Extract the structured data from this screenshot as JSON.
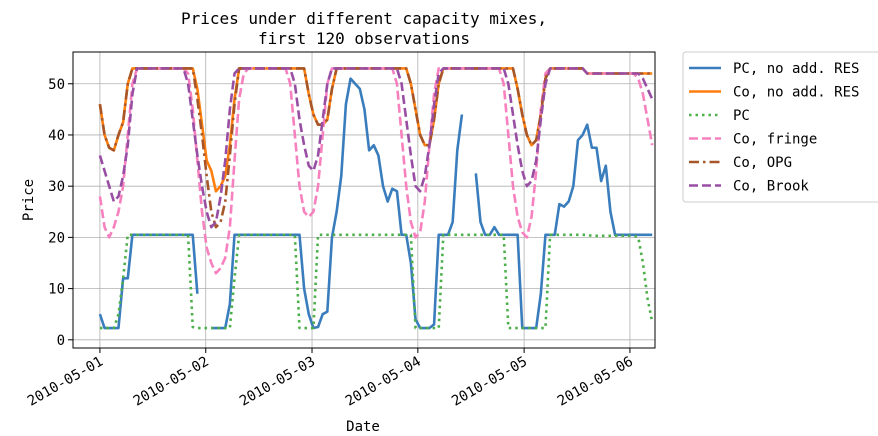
{
  "chart_data": {
    "type": "line",
    "title": [
      "Prices under different capacity mixes,",
      "first 120 observations"
    ],
    "x_label": "Date",
    "y_label": "Price",
    "x": [
      0,
      1,
      2,
      3,
      4,
      5,
      6,
      7,
      8,
      9,
      10,
      11,
      12,
      13,
      14,
      15,
      16,
      17,
      18,
      19,
      20,
      21,
      22,
      23,
      24,
      25,
      26,
      27,
      28,
      29,
      30,
      31,
      32,
      33,
      34,
      35,
      36,
      37,
      38,
      39,
      40,
      41,
      42,
      43,
      44,
      45,
      46,
      47,
      48,
      49,
      50,
      51,
      52,
      53,
      54,
      55,
      56,
      57,
      58,
      59,
      60,
      61,
      62,
      63,
      64,
      65,
      66,
      67,
      68,
      69,
      70,
      71,
      72,
      73,
      74,
      75,
      76,
      77,
      78,
      79,
      80,
      81,
      82,
      83,
      84,
      85,
      86,
      87,
      88,
      89,
      90,
      91,
      92,
      93,
      94,
      95,
      96,
      97,
      98,
      99,
      100,
      101,
      102,
      103,
      104,
      105,
      106,
      107,
      108,
      109,
      110,
      111,
      112,
      113,
      114,
      115,
      116,
      117,
      118,
      119
    ],
    "series": [
      {
        "name": "PC, no add. RES",
        "color": "#3a7dbd",
        "style": "solid",
        "values": [
          5,
          2.3,
          2.3,
          2.3,
          2.3,
          12,
          12,
          20.5,
          20.5,
          20.5,
          20.5,
          20.5,
          20.5,
          20.5,
          20.5,
          20.5,
          20.5,
          20.5,
          20.5,
          20.5,
          20.5,
          9,
          null,
          null,
          2.3,
          2.3,
          2.3,
          2.3,
          7,
          20.5,
          20.5,
          20.5,
          20.5,
          20.5,
          20.5,
          20.5,
          20.5,
          20.5,
          20.5,
          20.5,
          20.5,
          20.5,
          20.5,
          20.5,
          10,
          5,
          2.3,
          2.5,
          5,
          5.5,
          20,
          25,
          32,
          46,
          51,
          50,
          49,
          45,
          37,
          38,
          36,
          30,
          27,
          29.5,
          29,
          20.5,
          20.5,
          15,
          4,
          2.3,
          2.3,
          2.3,
          3,
          20.5,
          20.5,
          20.5,
          23,
          37,
          44,
          null,
          null,
          32.5,
          23,
          20.5,
          20.5,
          22,
          20.5,
          20.5,
          20.5,
          20.5,
          20.5,
          2.3,
          2.3,
          2.3,
          2.3,
          9,
          20.5,
          20.5,
          20.5,
          26.5,
          26,
          27,
          30,
          39,
          40,
          42,
          37.5,
          37.5,
          31,
          34,
          25,
          20.5,
          20.5,
          20.5,
          20.5,
          20.5,
          20.5,
          20.5,
          20.5,
          20.5
        ]
      },
      {
        "name": "Co, no add. RES",
        "color": "#ff7f0e",
        "style": "solid",
        "values": [
          46,
          40,
          37.5,
          37,
          40,
          42.5,
          50,
          53,
          53,
          53,
          53,
          53,
          53,
          53,
          53,
          53,
          53,
          53,
          53,
          53,
          53,
          49,
          42,
          35,
          33,
          29,
          30,
          32,
          38,
          47,
          53,
          53,
          53,
          53,
          53,
          53,
          53,
          53,
          53,
          53,
          53,
          53,
          53,
          53,
          53,
          48,
          44,
          42,
          42,
          43,
          49,
          53,
          53,
          53,
          53,
          53,
          53,
          53,
          53,
          53,
          53,
          53,
          53,
          53,
          53,
          53,
          53,
          50,
          45,
          40,
          38,
          38,
          43,
          50,
          53,
          53,
          53,
          53,
          53,
          53,
          53,
          53,
          53,
          53,
          53,
          53,
          53,
          53,
          53,
          53,
          49,
          44,
          40,
          38,
          39,
          44,
          51,
          53,
          53,
          53,
          53,
          53,
          53,
          53,
          53,
          52,
          52,
          52,
          52,
          52,
          52,
          52,
          52,
          52,
          52,
          52,
          52,
          52,
          52,
          52
        ]
      },
      {
        "name": "PC",
        "color": "#4daf4a",
        "style": "dotted",
        "values": [
          2.3,
          2.3,
          2.3,
          2.3,
          5,
          12,
          20.5,
          20.5,
          20.5,
          20.5,
          20.5,
          20.5,
          20.5,
          20.5,
          20.5,
          20.5,
          20.5,
          20.5,
          20.5,
          20.5,
          2.5,
          2.3,
          2.3,
          2.3,
          2.3,
          2.3,
          2.3,
          2.3,
          2.3,
          12,
          20.5,
          20.5,
          20.5,
          20.5,
          20.5,
          20.5,
          20.5,
          20.5,
          20.5,
          20.5,
          20.5,
          20.5,
          20.5,
          2.3,
          2.3,
          2.3,
          2.3,
          20.5,
          20.5,
          20.5,
          20.5,
          20.5,
          20.5,
          20.5,
          20.5,
          20.5,
          20.5,
          20.5,
          20.5,
          20.5,
          20.5,
          20.5,
          20.5,
          20.5,
          20.5,
          20.5,
          20.5,
          20.5,
          2.3,
          2.3,
          2.3,
          2.3,
          2.3,
          2.3,
          20.5,
          20.5,
          20.5,
          20.5,
          20.5,
          20.5,
          20.5,
          20.5,
          20.5,
          20.5,
          20.5,
          20.5,
          20.5,
          20.5,
          2.3,
          2.3,
          2.3,
          2.3,
          2.3,
          2.3,
          2.3,
          2.3,
          2.3,
          20.5,
          20.5,
          20.5,
          20.5,
          20.5,
          20.5,
          20.5,
          20.5,
          20.5,
          20.3,
          20.3,
          20.3,
          20.3,
          20.3,
          20.3,
          20.3,
          20.3,
          20.3,
          20.3,
          20,
          15,
          8,
          3.5
        ]
      },
      {
        "name": "Co, fringe",
        "color": "#f781bf",
        "style": "dashed",
        "values": [
          28,
          22,
          20,
          22,
          25,
          30,
          40,
          50,
          53,
          53,
          53,
          53,
          53,
          53,
          53,
          53,
          53,
          53,
          53,
          52,
          45,
          35,
          25,
          18,
          15,
          13,
          14,
          16,
          22,
          35,
          47,
          52,
          53,
          53,
          53,
          53,
          53,
          53,
          53,
          53,
          53,
          50,
          40,
          30,
          25,
          24,
          25,
          30,
          40,
          50,
          53,
          53,
          53,
          53,
          53,
          53,
          53,
          53,
          53,
          53,
          53,
          53,
          53,
          53,
          50,
          40,
          30,
          23,
          20,
          21,
          27,
          38,
          48,
          53,
          53,
          53,
          53,
          53,
          53,
          53,
          53,
          53,
          53,
          53,
          53,
          53,
          53,
          50,
          40,
          30,
          24,
          21,
          20,
          24,
          33,
          45,
          52,
          53,
          53,
          53,
          53,
          53,
          53,
          53,
          53,
          52,
          52,
          52,
          52,
          52,
          52,
          52,
          52,
          52,
          52,
          52,
          51,
          48,
          43,
          38
        ]
      },
      {
        "name": "Co, OPG",
        "color": "#a65628",
        "style": "dashdot",
        "values": [
          46,
          40,
          37.5,
          37,
          40,
          42.5,
          50,
          53,
          53,
          53,
          53,
          53,
          53,
          53,
          53,
          53,
          53,
          53,
          53,
          53,
          53,
          47,
          40,
          32,
          25,
          22,
          23,
          27,
          36,
          46,
          53,
          53,
          53,
          53,
          53,
          53,
          53,
          53,
          53,
          53,
          53,
          53,
          53,
          53,
          53,
          48,
          44,
          42,
          42,
          43,
          49,
          53,
          53,
          53,
          53,
          53,
          53,
          53,
          53,
          53,
          53,
          53,
          53,
          53,
          53,
          53,
          53,
          50,
          45,
          40,
          38,
          38,
          43,
          50,
          53,
          53,
          53,
          53,
          53,
          53,
          53,
          53,
          53,
          53,
          53,
          53,
          53,
          53,
          53,
          53,
          49,
          44,
          40,
          38,
          39,
          44,
          51,
          53,
          53,
          53,
          53,
          53,
          53,
          53,
          53,
          52,
          52,
          52,
          52,
          52,
          52,
          52,
          52,
          52,
          52,
          52,
          52,
          52,
          52,
          52
        ]
      },
      {
        "name": "Co, Brook",
        "color": "#984ea3",
        "style": "dashed",
        "values": [
          36,
          33,
          30,
          27,
          28,
          32,
          38,
          48,
          53,
          53,
          53,
          53,
          53,
          53,
          53,
          53,
          53,
          53,
          53,
          50,
          43,
          36,
          30,
          25,
          22,
          23,
          28,
          35,
          45,
          52,
          53,
          53,
          53,
          53,
          53,
          53,
          53,
          53,
          53,
          53,
          53,
          53,
          50,
          43,
          38,
          34,
          33,
          36,
          43,
          50,
          53,
          53,
          53,
          53,
          53,
          53,
          53,
          53,
          53,
          53,
          53,
          53,
          53,
          53,
          53,
          50,
          43,
          36,
          30,
          29,
          32,
          38,
          46,
          52,
          53,
          53,
          53,
          53,
          53,
          53,
          53,
          53,
          53,
          53,
          53,
          53,
          53,
          53,
          50,
          44,
          38,
          33,
          30,
          31,
          35,
          43,
          50,
          53,
          53,
          53,
          53,
          53,
          53,
          53,
          53,
          52,
          52,
          52,
          52,
          52,
          52,
          52,
          52,
          52,
          52,
          52,
          52,
          51,
          49,
          47
        ]
      }
    ],
    "xlim": [
      -5.8,
      119.6
    ],
    "xticks": [
      {
        "value": 0,
        "label": "2010-05-01"
      },
      {
        "value": 22.8,
        "label": "2010-05-02"
      },
      {
        "value": 45.7,
        "label": "2010-05-03"
      },
      {
        "value": 68.5,
        "label": "2010-05-04"
      },
      {
        "value": 91.4,
        "label": "2010-05-05"
      },
      {
        "value": 114.2,
        "label": "2010-05-06"
      }
    ],
    "ylim": [
      -1.6,
      56.2
    ],
    "yticks": [
      0,
      10,
      20,
      30,
      40,
      50
    ],
    "grid": true,
    "legend": "outside upper right"
  }
}
